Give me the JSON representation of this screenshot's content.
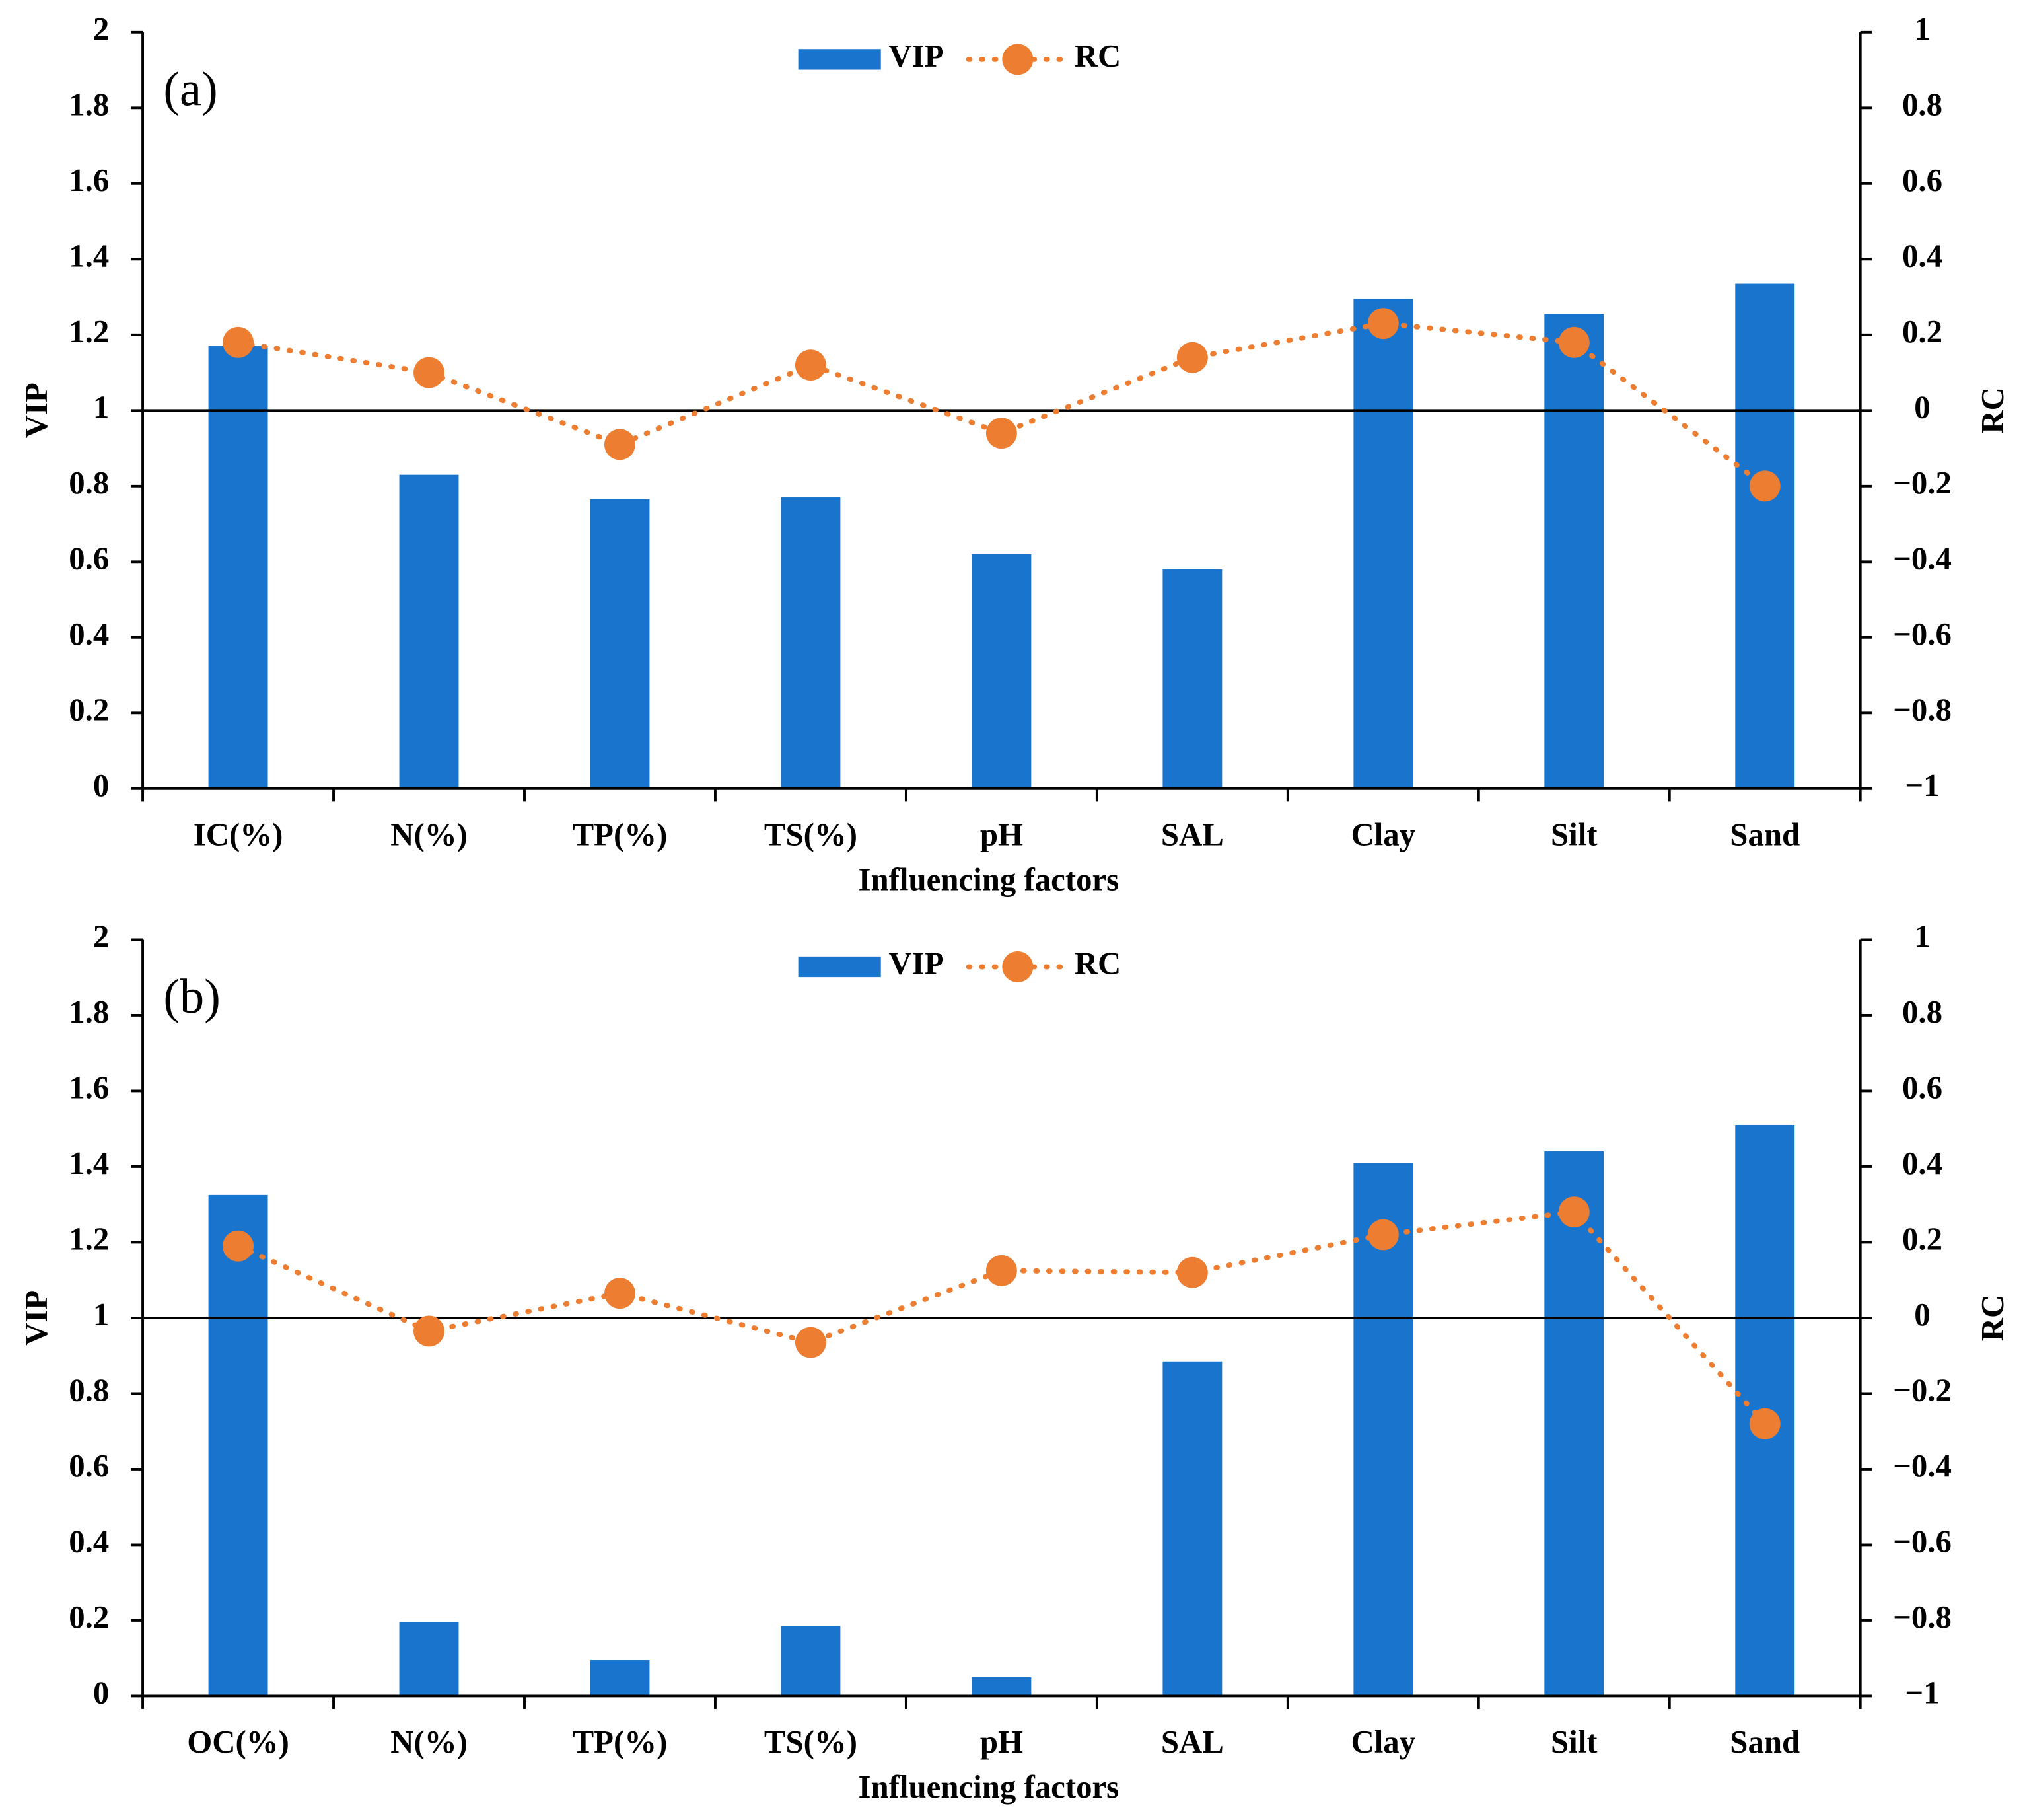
{
  "chart_data": [
    {
      "type": "combo",
      "annotation": "(a)",
      "x_label": "Influencing factors",
      "y_label": "VIP",
      "y2_label": "RC",
      "legend": "top",
      "categories": [
        "IC(%)",
        "N(%)",
        "TP(%)",
        "TS(%)",
        "pH",
        "SAL",
        "Clay",
        "Silt",
        "Sand"
      ],
      "series": [
        {
          "name": "VIP",
          "type": "bar",
          "color": "#1874cd",
          "values": [
            1.17,
            0.83,
            0.765,
            0.77,
            0.62,
            0.58,
            1.295,
            1.255,
            1.335
          ]
        },
        {
          "name": "RC",
          "type": "line",
          "axis": "y2",
          "color": "#ed7d31",
          "values": [
            0.18,
            0.1,
            -0.09,
            0.12,
            -0.06,
            0.14,
            0.23,
            0.18,
            -0.2
          ]
        }
      ],
      "ylim": [
        0,
        2
      ],
      "yticks": [
        0,
        0.2,
        0.4,
        0.6,
        0.8,
        1,
        1.2,
        1.4,
        1.6,
        1.8,
        2
      ],
      "y2lim": [
        -1,
        1
      ],
      "y2ticks": [
        {
          "value": -1,
          "label": "−1"
        },
        {
          "value": -0.8,
          "label": "−0.8"
        },
        {
          "value": -0.6,
          "label": "−0.6"
        },
        {
          "value": -0.4,
          "label": "−0.4"
        },
        {
          "value": -0.2,
          "label": "−0.2"
        },
        0,
        0.2,
        0.4,
        0.6,
        0.8,
        1
      ]
    },
    {
      "type": "combo",
      "annotation": "(b)",
      "x_label": "Influencing factors",
      "y_label": "VIP",
      "y2_label": "RC",
      "legend": "top",
      "categories": [
        "OC(%)",
        "N(%)",
        "TP(%)",
        "TS(%)",
        "pH",
        "SAL",
        "Clay",
        "Silt",
        "Sand"
      ],
      "series": [
        {
          "name": "VIP",
          "type": "bar",
          "color": "#1874cd",
          "values": [
            1.325,
            0.195,
            0.095,
            0.185,
            0.05,
            0.885,
            1.41,
            1.44,
            1.51
          ]
        },
        {
          "name": "RC",
          "type": "line",
          "axis": "y2",
          "color": "#ed7d31",
          "values": [
            0.19,
            -0.035,
            0.065,
            -0.065,
            0.125,
            0.12,
            0.22,
            0.28,
            -0.28
          ]
        }
      ],
      "ylim": [
        0,
        2
      ],
      "yticks": [
        0,
        0.2,
        0.4,
        0.6,
        0.8,
        1,
        1.2,
        1.4,
        1.6,
        1.8,
        2
      ],
      "y2lim": [
        -1,
        1
      ],
      "y2ticks": [
        {
          "value": -1,
          "label": "−1"
        },
        {
          "value": -0.8,
          "label": "−0.8"
        },
        {
          "value": -0.6,
          "label": "−0.6"
        },
        {
          "value": -0.4,
          "label": "−0.4"
        },
        {
          "value": -0.2,
          "label": "−0.2"
        },
        0,
        0.2,
        0.4,
        0.6,
        0.8,
        1
      ]
    }
  ]
}
